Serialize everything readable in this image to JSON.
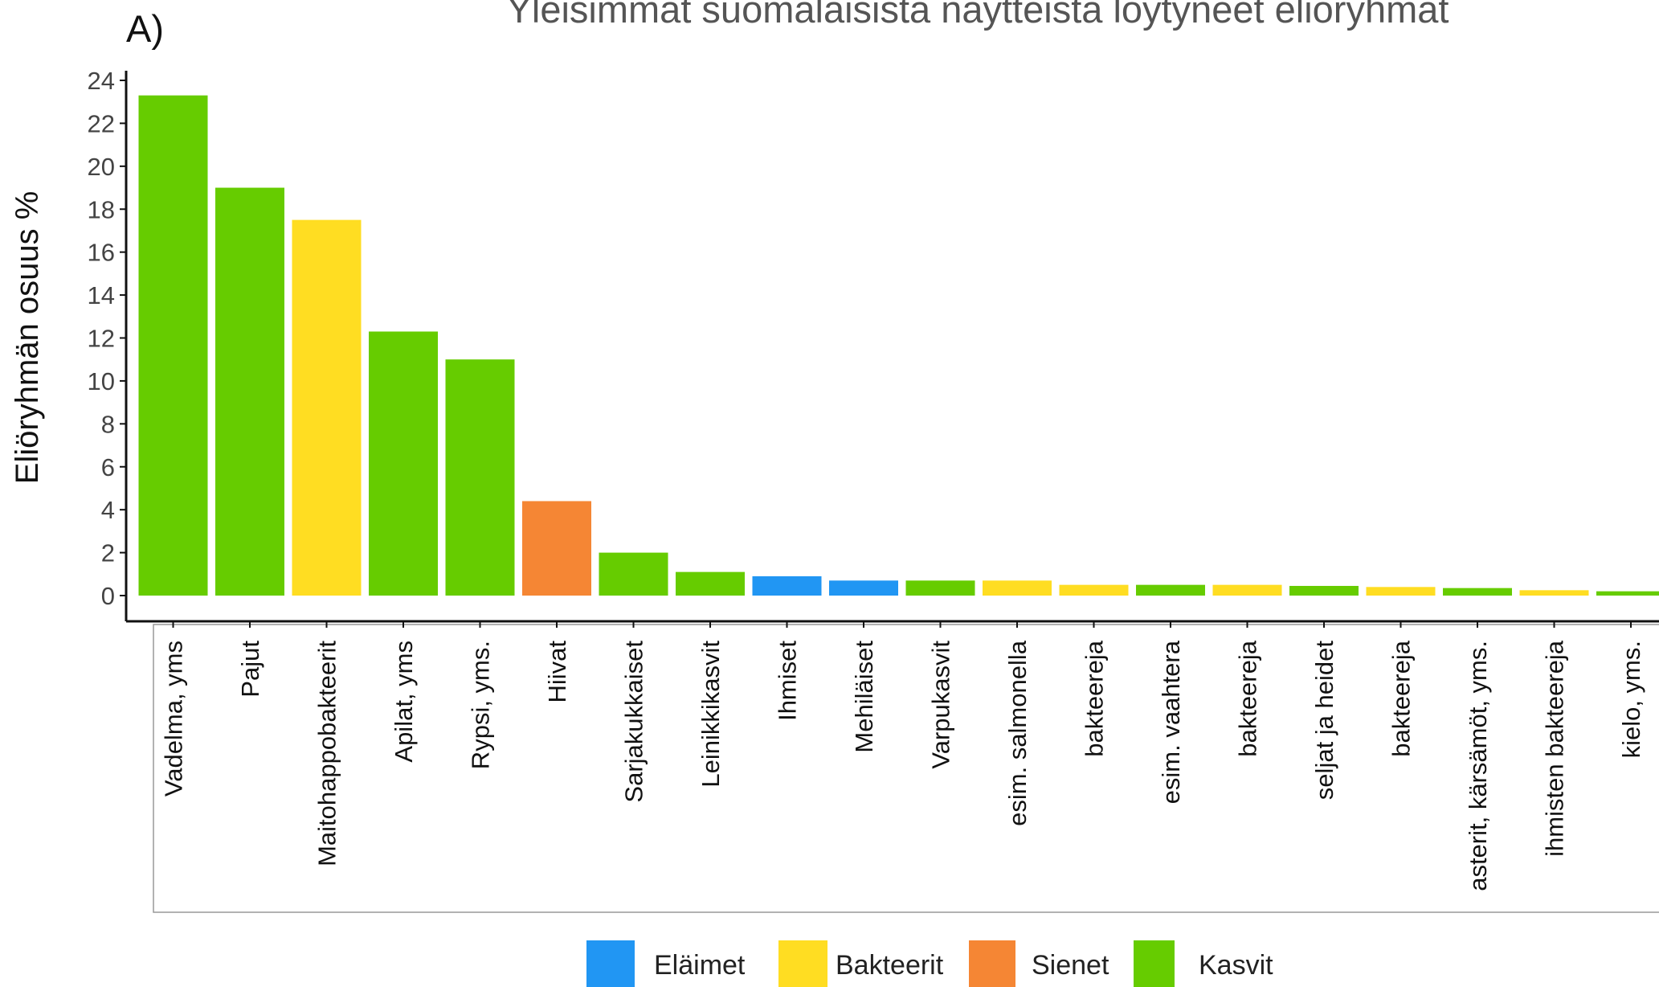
{
  "chart_data": {
    "type": "bar",
    "panel_label": "A)",
    "title": "Yleisimmät suomalaisista näytteistä löytyneet eliöryhmät",
    "y_label": "Eliöryhmän osuus %",
    "categories": [
      "Vadelma, yms",
      "Pajut",
      "Maitohappobakteerit",
      "Apilat, yms",
      "Rypsi, yms.",
      "Hiivat",
      "Sarjakukkaiset",
      "Leinikkikasvit",
      "Ihmiset",
      "Mehiläiset",
      "Varpukasvit",
      "esim. salmonella",
      "bakteereja",
      "esim. vaahtera",
      "bakteereja",
      "seljat ja heidet",
      "bakteereja",
      "asterit, kärsämöt, yms.",
      "ihmisten bakteereja",
      "kielo, yms."
    ],
    "values": [
      23.3,
      19.0,
      17.5,
      12.3,
      11.0,
      4.4,
      2.0,
      1.1,
      0.9,
      0.7,
      0.7,
      0.7,
      0.5,
      0.5,
      0.5,
      0.45,
      0.4,
      0.35,
      0.25,
      0.2
    ],
    "colors": [
      "#66cc00",
      "#66cc00",
      "#ffdd22",
      "#66cc00",
      "#66cc00",
      "#f58634",
      "#66cc00",
      "#66cc00",
      "#2196f3",
      "#2196f3",
      "#66cc00",
      "#ffdd22",
      "#ffdd22",
      "#66cc00",
      "#ffdd22",
      "#66cc00",
      "#ffdd22",
      "#66cc00",
      "#ffdd22",
      "#66cc00"
    ],
    "legend": [
      {
        "name": "Eläimet",
        "color": "#2196f3"
      },
      {
        "name": "Bakteerit",
        "color": "#ffdd22"
      },
      {
        "name": "Sienet",
        "color": "#f58634"
      },
      {
        "name": "Kasvit",
        "color": "#66cc00"
      }
    ],
    "ylim": [
      0,
      24
    ],
    "yticks": [
      0,
      2,
      4,
      6,
      8,
      10,
      12,
      14,
      16,
      18,
      20,
      22,
      24
    ]
  }
}
